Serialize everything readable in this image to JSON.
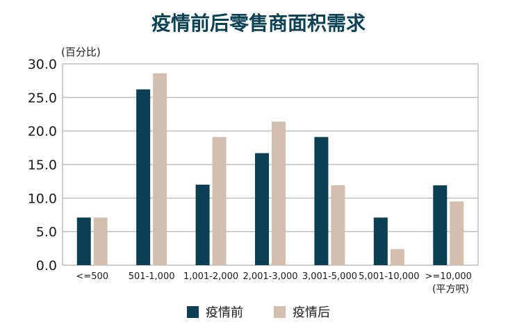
{
  "chart_data": {
    "type": "bar",
    "title": "疫情前后零售商面积需求",
    "ylabel": "(百分比)",
    "xlabel": "(平方呎)",
    "ylim": [
      0,
      30
    ],
    "yticks": [
      "0.0",
      "5.0",
      "10.0",
      "15.0",
      "20.0",
      "25.0",
      "30.0"
    ],
    "grid": true,
    "legend_position": "bottom",
    "categories": [
      "<=500",
      "501-1,000",
      "1,001-2,000",
      "2,001-3,000",
      "3,001-5,000",
      "5,001-10,000",
      ">=10,000"
    ],
    "series": [
      {
        "name": "疫情前",
        "color": "#0b3f54",
        "values": [
          7.1,
          26.2,
          12.0,
          16.7,
          19.1,
          7.1,
          11.9
        ]
      },
      {
        "name": "疫情后",
        "color": "#d4bfae",
        "values": [
          7.1,
          28.6,
          19.1,
          21.4,
          11.9,
          2.4,
          9.5
        ]
      }
    ]
  }
}
